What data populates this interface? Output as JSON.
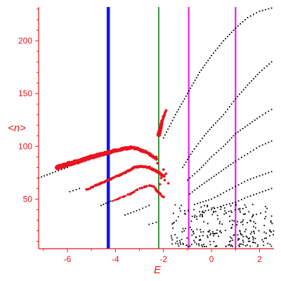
{
  "chart_data": {
    "type": "scatter",
    "title": "",
    "xlabel": "E",
    "ylabel": "<n>",
    "xlim": [
      -7.2,
      2.6
    ],
    "ylim": [
      3,
      232
    ],
    "x_ticks": [
      -6,
      -4,
      -2,
      0,
      2
    ],
    "x_tick_labels": [
      "-6",
      "-4",
      "-2",
      "0",
      "2"
    ],
    "y_ticks": [
      50,
      100,
      150,
      200
    ],
    "y_tick_labels": [
      "50",
      "100",
      "150",
      "200"
    ],
    "grid": false,
    "legend": "none",
    "colors": {
      "axes": "#e8141e",
      "labels": "#e8141e",
      "black_points": "#000000",
      "red_points": "#e8141e",
      "line_blue": "#0a14ff",
      "line_green": "#0a7a14",
      "line_magenta": "#e81ee8"
    },
    "vertical_lines": [
      {
        "x": -4.3,
        "color": "#0a14ff",
        "width": "thick"
      },
      {
        "x": -2.2,
        "color": "#0a7a14",
        "width": "thin"
      },
      {
        "x": -0.95,
        "color": "#e81ee8",
        "width": "medium"
      },
      {
        "x": 1.0,
        "color": "#e81ee8",
        "width": "medium"
      }
    ],
    "black_curves": [
      [
        [
          -7.2,
          70
        ],
        [
          -6.5,
          76
        ],
        [
          -6.0,
          80
        ]
      ],
      [
        [
          -5.9,
          57
        ],
        [
          -5.5,
          60
        ]
      ],
      [
        [
          -4.6,
          44
        ],
        [
          -4.4,
          46
        ],
        [
          -4.2,
          48
        ]
      ],
      [
        [
          -3.6,
          35
        ],
        [
          -3.0,
          40
        ],
        [
          -2.6,
          44
        ]
      ],
      [
        [
          -2.6,
          26
        ],
        [
          -2.3,
          28
        ]
      ],
      [
        [
          -2.0,
          108
        ],
        [
          -1.5,
          130
        ],
        [
          -1.0,
          150
        ],
        [
          -0.5,
          170
        ],
        [
          0.0,
          186
        ],
        [
          0.5,
          200
        ],
        [
          1.0,
          212
        ],
        [
          1.5,
          222
        ],
        [
          2.0,
          228
        ],
        [
          2.5,
          231
        ]
      ],
      [
        [
          -1.2,
          80
        ],
        [
          -0.8,
          95
        ],
        [
          -0.3,
          110
        ],
        [
          0.0,
          118
        ],
        [
          0.5,
          130
        ],
        [
          1.0,
          145
        ],
        [
          1.5,
          158
        ],
        [
          2.0,
          170
        ],
        [
          2.5,
          180
        ]
      ],
      [
        [
          -1.0,
          68
        ],
        [
          -0.5,
          78
        ],
        [
          0.0,
          90
        ],
        [
          0.5,
          100
        ],
        [
          1.0,
          112
        ],
        [
          1.5,
          120
        ],
        [
          2.0,
          128
        ],
        [
          2.5,
          135
        ]
      ],
      [
        [
          -0.9,
          55
        ],
        [
          -0.5,
          62
        ],
        [
          0.0,
          70
        ],
        [
          0.5,
          78
        ],
        [
          1.0,
          86
        ],
        [
          1.5,
          93
        ],
        [
          2.0,
          100
        ],
        [
          2.5,
          105
        ]
      ],
      [
        [
          -0.7,
          45
        ],
        [
          0.0,
          50
        ],
        [
          0.5,
          56
        ],
        [
          1.0,
          62
        ],
        [
          1.5,
          68
        ],
        [
          2.0,
          72
        ],
        [
          2.5,
          76
        ]
      ],
      [
        [
          -0.5,
          38
        ],
        [
          0.0,
          40
        ],
        [
          0.5,
          44
        ],
        [
          1.0,
          47
        ],
        [
          1.5,
          52
        ],
        [
          2.0,
          56
        ],
        [
          2.5,
          60
        ]
      ]
    ],
    "black_scatter_region": {
      "x": [
        -1.7,
        2.6
      ],
      "y": [
        5,
        45
      ]
    },
    "red_main_branch": [
      [
        -6.4,
        80
      ],
      [
        -6.0,
        83
      ],
      [
        -5.5,
        86
      ],
      [
        -5.0,
        90
      ],
      [
        -4.5,
        93
      ],
      [
        -4.0,
        96
      ],
      [
        -3.6,
        98
      ],
      [
        -3.3,
        99
      ],
      [
        -3.0,
        97
      ],
      [
        -2.6,
        93
      ],
      [
        -2.3,
        88
      ]
    ],
    "red_middle_branch": [
      [
        -5.2,
        59
      ],
      [
        -4.8,
        63
      ],
      [
        -4.4,
        67
      ],
      [
        -4.0,
        71
      ],
      [
        -3.6,
        75
      ],
      [
        -3.2,
        80
      ],
      [
        -2.9,
        81
      ],
      [
        -2.6,
        80
      ],
      [
        -2.2,
        75
      ],
      [
        -2.0,
        72
      ]
    ],
    "red_lower_branch": [
      [
        -4.1,
        48
      ],
      [
        -3.8,
        51
      ],
      [
        -3.4,
        55
      ],
      [
        -3.0,
        60
      ],
      [
        -2.6,
        63
      ],
      [
        -2.4,
        62
      ],
      [
        -2.2,
        56
      ],
      [
        -2.0,
        52
      ]
    ],
    "red_upper_branch": [
      [
        -2.2,
        111
      ],
      [
        -2.1,
        120
      ],
      [
        -2.0,
        128
      ],
      [
        -1.9,
        134
      ]
    ]
  }
}
